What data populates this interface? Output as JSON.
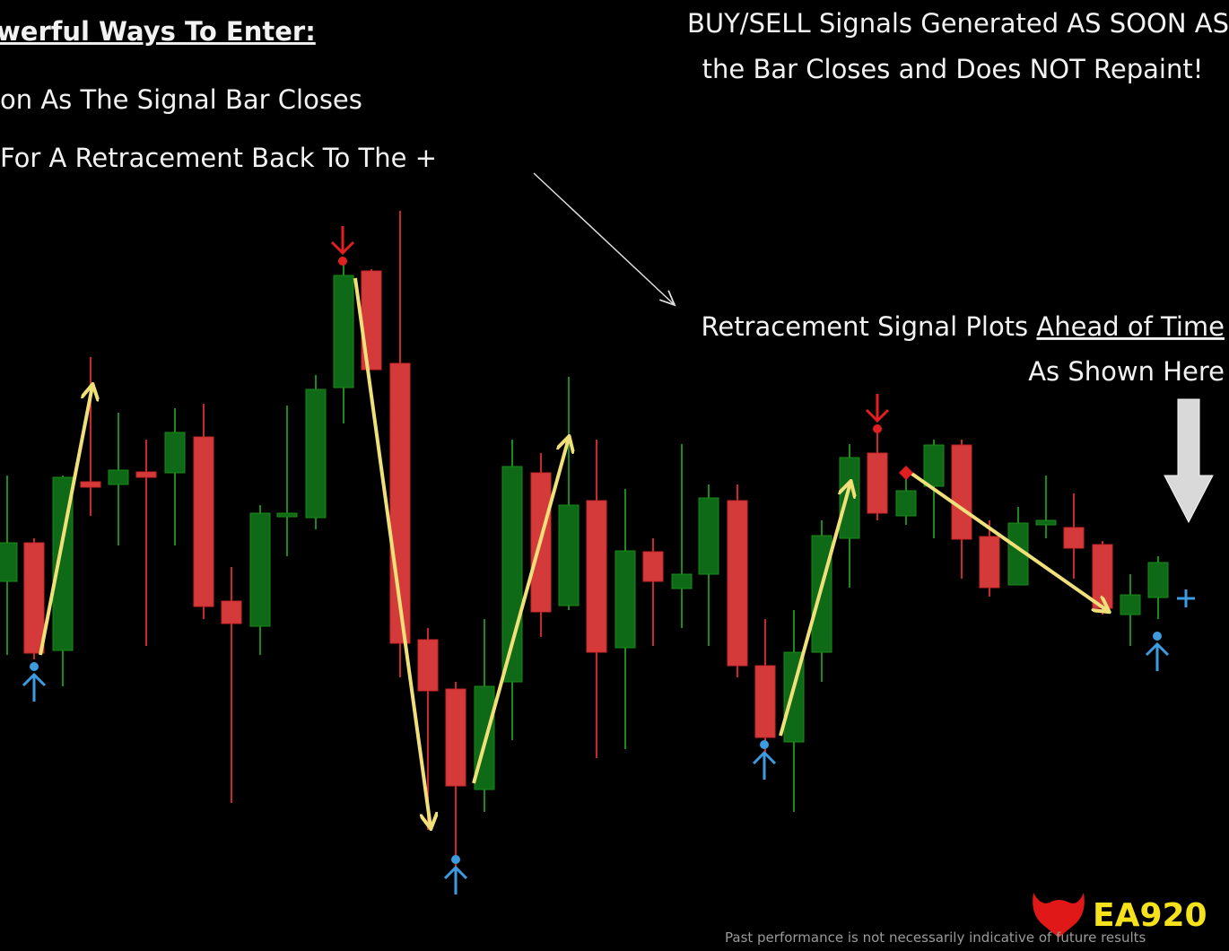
{
  "header": {
    "title": "werful Ways To Enter:",
    "lines": [
      "on As The Signal Bar Closes",
      "For A Retracement Back To The +"
    ]
  },
  "notes": {
    "signals": [
      "BUY/SELL Signals Generated AS SOON AS",
      "the Bar Closes and Does NOT Repaint!"
    ],
    "retracement": {
      "lead": "Retracement  Signal Plots ",
      "underlined": "Ahead of Time",
      "next": "As Shown Here"
    }
  },
  "footer": {
    "logo": "EA920",
    "disclaimer": "Past performance is not necessarily indicative of future results"
  }
}
